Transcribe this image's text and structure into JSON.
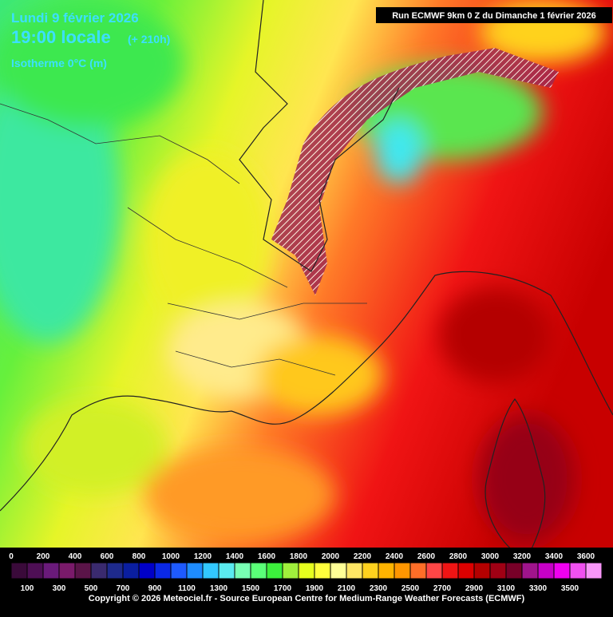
{
  "header": {
    "date": "Lundi 9 février 2026",
    "time": "19:00 locale",
    "lead": "(+ 210h)",
    "field": "Isotherme 0°C (m)",
    "run": "Run ECMWF 9km 0 Z du Dimanche 1 février 2026"
  },
  "scale": {
    "ticks_top": [
      0,
      200,
      400,
      600,
      800,
      1000,
      1200,
      1400,
      1600,
      1800,
      2000,
      2200,
      2400,
      2600,
      2800,
      3000,
      3200,
      3400,
      3600
    ],
    "ticks_bottom": [
      100,
      300,
      500,
      700,
      900,
      1100,
      1300,
      1500,
      1700,
      1900,
      2100,
      2300,
      2500,
      2700,
      2900,
      3100,
      3300,
      3500
    ],
    "colors": [
      "#3a0a3a",
      "#4e0f55",
      "#6a1a7a",
      "#7a1a6a",
      "#5a1448",
      "#3a2a6e",
      "#1e2a8c",
      "#0a1ea0",
      "#0000c8",
      "#0a28e6",
      "#1e5aff",
      "#1e8cff",
      "#32c8ff",
      "#5aebf0",
      "#78ffb4",
      "#5aff78",
      "#3cf03c",
      "#a0f03c",
      "#e6ff1e",
      "#ffff3c",
      "#ffff96",
      "#ffe664",
      "#ffd21e",
      "#ffb400",
      "#ff9600",
      "#ff6e28",
      "#ff4646",
      "#f01414",
      "#dc0000",
      "#b40000",
      "#a00014",
      "#780028",
      "#a0148c",
      "#c800c8",
      "#f000f0",
      "#f050f0",
      "#f896f8"
    ]
  },
  "footer": {
    "copyright": "Copyright © 2026 Meteociel.fr - Source European Centre for Medium-Range Weather Forecasts (ECMWF)"
  }
}
